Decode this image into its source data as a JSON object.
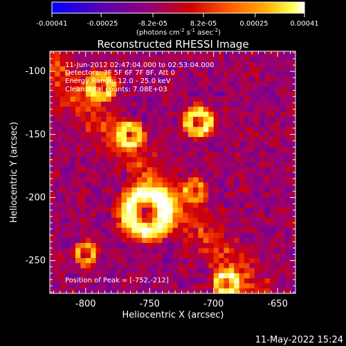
{
  "colorbar": {
    "ticks": [
      "-0.00041",
      "-0.00025",
      "-8.2e-05",
      "8.2e-05",
      "0.00025",
      "0.00041"
    ],
    "tick_values": [
      -0.00041,
      -0.00025,
      -8.2e-05,
      8.2e-05,
      0.00025,
      0.00041
    ],
    "range": [
      -0.00041,
      0.00041
    ],
    "units_main": "(photons cm",
    "units_sup1": "-2",
    "units_mid": " s",
    "units_sup2": "-1",
    "units_end": " asec",
    "units_sup3": "-2",
    "units_close": ")",
    "colors": [
      "#0000ff",
      "#5a00b4",
      "#9a0070",
      "#d20000",
      "#ff5a00",
      "#ffb000",
      "#ffff50",
      "#ffffff"
    ]
  },
  "chart_data": {
    "type": "heatmap",
    "title": "Reconstructed RHESSI Image",
    "xlabel": "Heliocentric X (arcsec)",
    "ylabel": "Heliocentric Y (arcsec)",
    "xlim": [
      -828,
      -636
    ],
    "ylim": [
      -276,
      -84
    ],
    "x_ticks": [
      -800,
      -750,
      -700,
      -650
    ],
    "y_ticks": [
      -100,
      -150,
      -200,
      -250
    ],
    "x_tick_labels": [
      "-800",
      "-750",
      "-700",
      "-650"
    ],
    "y_tick_labels": [
      "-100",
      "-150",
      "-200",
      "-250"
    ],
    "peak_position": [
      -752,
      -212
    ],
    "sources": [
      {
        "x": -752,
        "y": -212,
        "r": 18,
        "amp": 1.0
      },
      {
        "x": -712,
        "y": -140,
        "r": 10,
        "amp": 0.85
      },
      {
        "x": -788,
        "y": -112,
        "r": 10,
        "amp": 0.75
      },
      {
        "x": -765,
        "y": -150,
        "r": 9,
        "amp": 0.7
      },
      {
        "x": -690,
        "y": -268,
        "r": 9,
        "amp": 0.8
      },
      {
        "x": -800,
        "y": -245,
        "r": 8,
        "amp": 0.6
      },
      {
        "x": -715,
        "y": -195,
        "r": 8,
        "amp": 0.6
      }
    ],
    "annotations": {
      "time": "11-Jun-2012 02:47:04.000 to 02:53:04.000",
      "detectors": "Detectors: 3F 5F 6F 7F 8F, Att 0",
      "energy": "Energy Range: 12.0 - 25.0 keV",
      "clean": "Clean    Total counts: 7.08E+03",
      "peak": "Position of Peak = [-752,-212]"
    }
  },
  "footer": {
    "date": "11-May-2022 15:24"
  }
}
